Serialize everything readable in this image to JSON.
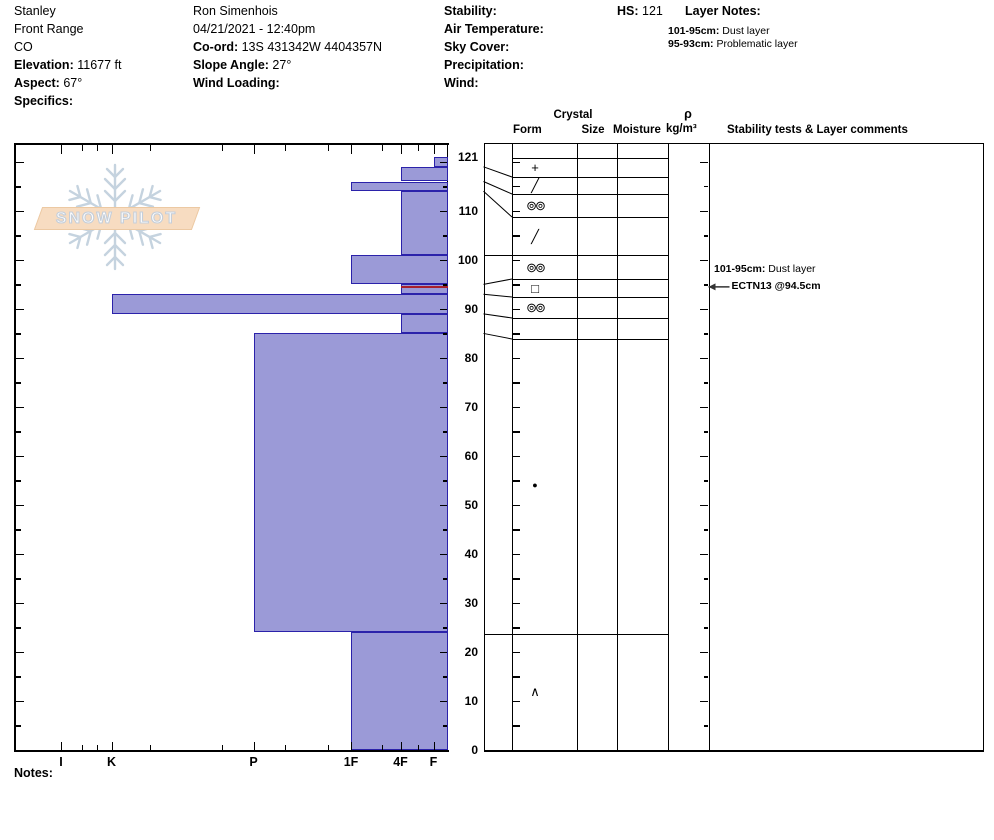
{
  "site": {
    "name": "Stanley",
    "range": "Front Range",
    "state": "CO",
    "elevation_label": "Elevation:",
    "elevation": "11677 ft",
    "aspect_label": "Aspect:",
    "aspect": "67°",
    "specifics_label": "Specifics:"
  },
  "observation": {
    "observer": "Ron Simenhois",
    "datetime": "04/21/2021 - 12:40pm",
    "coord_label": "Co-ord:",
    "coord": "13S 431342W 4404357N",
    "slope_label": "Slope Angle:",
    "slope": "27°",
    "wind_loading_label": "Wind Loading:"
  },
  "conditions": {
    "stability_label": "Stability:",
    "air_temp_label": "Air Temperature:",
    "sky_label": "Sky Cover:",
    "precip_label": "Precipitation:",
    "wind_label": "Wind:"
  },
  "hs": {
    "label": "HS:",
    "value": "121"
  },
  "layer_notes": {
    "title": "Layer Notes:",
    "items": [
      {
        "range": "101-95cm:",
        "text": "Dust layer"
      },
      {
        "range": "95-93cm:",
        "text": "Problematic layer"
      }
    ]
  },
  "logo": {
    "text": "SNOW PILOT"
  },
  "notes_label": "Notes:",
  "chart_data": {
    "type": "bar",
    "orientation": "horizontal-profile",
    "title": "Snow pit hardness profile",
    "depth_axis": {
      "unit": "cm",
      "max": 121,
      "labeled_ticks": [
        121,
        110,
        100,
        90,
        80,
        70,
        60,
        50,
        40,
        30,
        20,
        10,
        0
      ],
      "minor_tick_step_cm": 5
    },
    "hardness_axis": {
      "categories": [
        "I",
        "K",
        "P",
        "1F",
        "4F",
        "F"
      ]
    },
    "layers": [
      {
        "top_cm": 121,
        "bottom_cm": 119,
        "hardness": "F",
        "grain_symbol": "+",
        "grain_name": "precipitation-particles"
      },
      {
        "top_cm": 119,
        "bottom_cm": 116,
        "hardness": "4F",
        "grain_symbol": "╱",
        "grain_name": "decomposing-fragments"
      },
      {
        "top_cm": 116,
        "bottom_cm": 114,
        "hardness": "1F",
        "grain_symbol": "⊚⊚",
        "grain_name": "melt-freeze-clusters"
      },
      {
        "top_cm": 114,
        "bottom_cm": 101,
        "hardness": "4F",
        "grain_symbol": "╱",
        "grain_name": "decomposing-fragments"
      },
      {
        "top_cm": 101,
        "bottom_cm": 95,
        "hardness": "1F",
        "grain_symbol": "⊚⊚",
        "grain_name": "melt-freeze-clusters"
      },
      {
        "top_cm": 95,
        "bottom_cm": 93,
        "hardness": "4F",
        "grain_symbol": "□",
        "grain_name": "faceted-crystals",
        "flagged": true
      },
      {
        "top_cm": 93,
        "bottom_cm": 89,
        "hardness": "K",
        "grain_symbol": "⊚⊚",
        "grain_name": "melt-freeze-clusters"
      },
      {
        "top_cm": 89,
        "bottom_cm": 85,
        "hardness": "4F",
        "grain_symbol": ""
      },
      {
        "top_cm": 85,
        "bottom_cm": 24,
        "hardness": "P",
        "grain_symbol": "●",
        "grain_name": "rounded-grains",
        "symbol_at_cm": 54
      },
      {
        "top_cm": 24,
        "bottom_cm": 0,
        "hardness": "1F",
        "grain_symbol": "∧",
        "grain_name": "depth-hoar",
        "symbol_at_cm": 12
      }
    ],
    "flags": {
      "red_line_depth_cm": 94.5
    },
    "layer_comments": [
      {
        "bold": "101-95cm:",
        "text": " Dust layer",
        "at_cm": 98,
        "arrow": false
      },
      {
        "bold": "ECTN13 @94.5cm",
        "text": "",
        "at_cm": 94.5,
        "arrow": true
      }
    ],
    "table_headers": {
      "group": "Crystal",
      "form": "Form",
      "size": "Size",
      "moisture": "Moisture",
      "rho": "ρ",
      "rho_units": "kg/m³",
      "comments": "Stability tests & Layer comments"
    },
    "colors": {
      "bar_fill": "#9b9ad7",
      "bar_border": "#2b22aa",
      "flag_red": "#a8202c",
      "line": "#000000",
      "logo_flake": "#c5d3df",
      "logo_banner": "#f7dcc1"
    }
  }
}
